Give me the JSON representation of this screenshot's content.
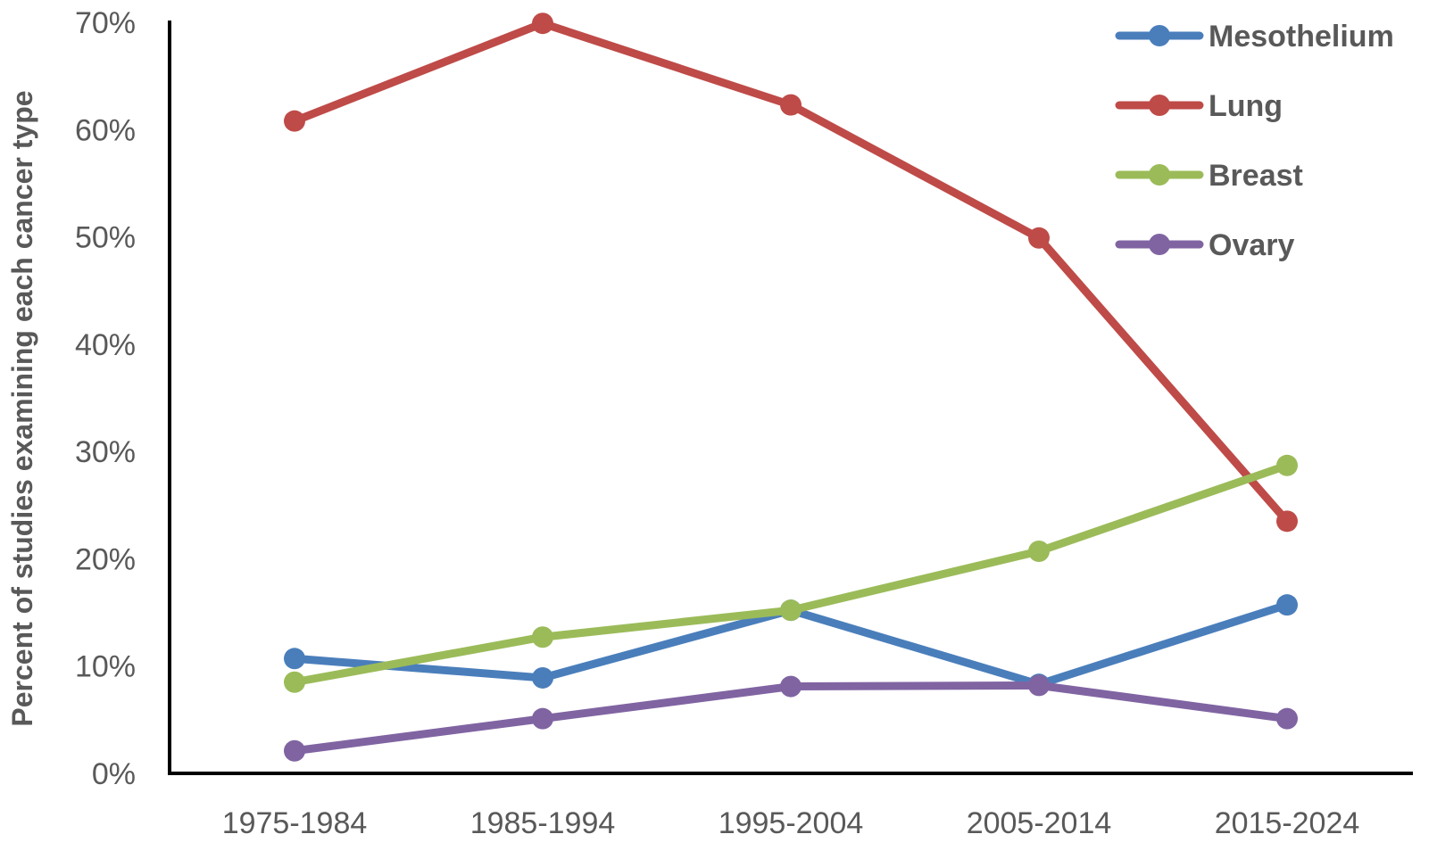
{
  "chart_data": {
    "type": "line",
    "title": "",
    "xlabel": "",
    "ylabel": "Percent of studies examining each cancer type",
    "categories": [
      "1975-1984",
      "1985-1994",
      "1995-2004",
      "2005-2014",
      "2015-2024"
    ],
    "ylim": [
      0,
      70
    ],
    "yticks": [
      0,
      10,
      20,
      30,
      40,
      50,
      60,
      70
    ],
    "ytick_labels": [
      "0%",
      "10%",
      "20%",
      "30%",
      "40%",
      "50%",
      "60%",
      "70%"
    ],
    "grid": false,
    "legend_position": "top-right",
    "series": [
      {
        "name": "Mesothelium",
        "color": "#4a7ebb",
        "values": [
          10.7,
          8.9,
          15.2,
          8.3,
          15.7
        ]
      },
      {
        "name": "Lung",
        "color": "#be4b48",
        "values": [
          60.8,
          69.9,
          62.3,
          49.9,
          23.5
        ]
      },
      {
        "name": "Breast",
        "color": "#9bbb59",
        "values": [
          8.5,
          12.7,
          15.2,
          20.7,
          28.7
        ]
      },
      {
        "name": "Ovary",
        "color": "#8064a2",
        "values": [
          2.1,
          5.1,
          8.1,
          8.2,
          5.1
        ]
      }
    ]
  }
}
